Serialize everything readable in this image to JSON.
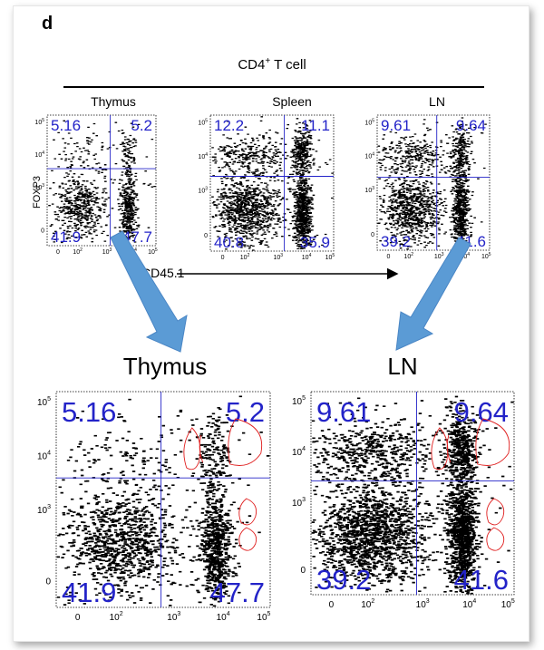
{
  "panel_label": "d",
  "header": "CD4",
  "header_sup": "+",
  "header_rest": " T cell",
  "y_axis_label": "FOXP3",
  "x_axis_label": "CD45.1",
  "x_ticks": [
    "0",
    "10",
    "10",
    "10",
    "10"
  ],
  "x_tick_exp": [
    "",
    "2",
    "3",
    "4",
    "5"
  ],
  "y_ticks": [
    "10",
    "10",
    "10",
    "0"
  ],
  "y_tick_exp": [
    "5",
    "4",
    "3",
    ""
  ],
  "small_panels": [
    {
      "title": "Thymus",
      "ul": "5.16",
      "ur": "5.2",
      "ll": "41.9",
      "lr": "47.7"
    },
    {
      "title": "Spleen",
      "ul": "12.2",
      "ur": "11.1",
      "ll": "40.8",
      "lr": "35.9"
    },
    {
      "title": "LN",
      "ul": "9.61",
      "ur": "9.64",
      "ll": "39.2",
      "lr": "41.6"
    }
  ],
  "big_panels": [
    {
      "title": "Thymus",
      "ul": "5.16",
      "ur": "5.2",
      "ll": "41.9",
      "lr": "47.7"
    },
    {
      "title": "LN",
      "ul": "9.61",
      "ur": "9.64",
      "ll": "39.2",
      "lr": "41.6"
    }
  ],
  "colors": {
    "quadrant": "#2323c8",
    "gate": "#e02020",
    "arrow": "#5b9bd5"
  }
}
